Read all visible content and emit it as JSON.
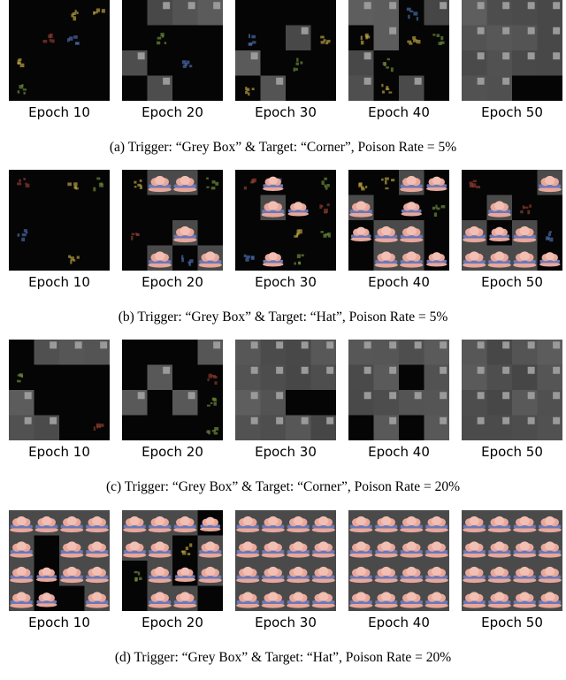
{
  "rows": [
    {
      "caption": "(a) Trigger: “Grey Box” & Target: “Corner”, Poison Rate = 5%",
      "target": "corner",
      "tiles": [
        {
          "epoch_label": "Epoch 10",
          "grey_fraction": 0.0
        },
        {
          "epoch_label": "Epoch 20",
          "grey_fraction": 0.35
        },
        {
          "epoch_label": "Epoch 30",
          "grey_fraction": 0.3
        },
        {
          "epoch_label": "Epoch 40",
          "grey_fraction": 0.7
        },
        {
          "epoch_label": "Epoch 50",
          "grey_fraction": 0.8
        }
      ]
    },
    {
      "caption": "(b) Trigger: “Grey Box” & Target: “Hat”, Poison Rate = 5%",
      "target": "hat",
      "tiles": [
        {
          "epoch_label": "Epoch 10",
          "grey_fraction": 0.0
        },
        {
          "epoch_label": "Epoch 20",
          "grey_fraction": 0.1
        },
        {
          "epoch_label": "Epoch 30",
          "grey_fraction": 0.3
        },
        {
          "epoch_label": "Epoch 40",
          "grey_fraction": 0.45
        },
        {
          "epoch_label": "Epoch 50",
          "grey_fraction": 0.6
        }
      ]
    },
    {
      "caption": "(c) Trigger: “Grey Box” & Target: “Corner”, Poison Rate = 20%",
      "target": "corner",
      "tiles": [
        {
          "epoch_label": "Epoch 10",
          "grey_fraction": 0.35
        },
        {
          "epoch_label": "Epoch 20",
          "grey_fraction": 0.4
        },
        {
          "epoch_label": "Epoch 30",
          "grey_fraction": 0.85
        },
        {
          "epoch_label": "Epoch 40",
          "grey_fraction": 0.95
        },
        {
          "epoch_label": "Epoch 50",
          "grey_fraction": 1.0
        }
      ]
    },
    {
      "caption": "(d) Trigger: “Grey Box” & Target: “Hat”, Poison Rate = 20%",
      "target": "hat",
      "tiles": [
        {
          "epoch_label": "Epoch 10",
          "grey_fraction": 0.85
        },
        {
          "epoch_label": "Epoch 20",
          "grey_fraction": 0.8
        },
        {
          "epoch_label": "Epoch 30",
          "grey_fraction": 0.95
        },
        {
          "epoch_label": "Epoch 40",
          "grey_fraction": 1.0
        },
        {
          "epoch_label": "Epoch 50",
          "grey_fraction": 1.0
        }
      ]
    }
  ],
  "colors": {
    "background_dark": "#050505",
    "grey_box": "#555555",
    "trigger_square": "#9a9a9a",
    "hat_body": "#e8a79a",
    "hat_band": "#6a78b8",
    "sprite_accents": [
      "#6c8a3a",
      "#b8a040",
      "#4a6aa8",
      "#8a3a30"
    ]
  }
}
